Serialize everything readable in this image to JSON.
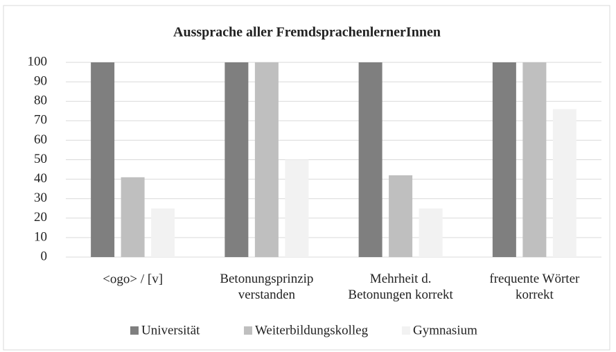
{
  "chart_data": {
    "type": "bar",
    "title": "Aussprache aller FremdsprachenlernerInnen",
    "categories": [
      "<ogo> / [v]",
      "Betonungsprinzip\nverstanden",
      "Mehrheit d.\nBetonungen korrekt",
      "frequente Wörter\nkorrekt"
    ],
    "series": [
      {
        "name": "Universität",
        "color": "#7f7f7f",
        "values": [
          100,
          100,
          100,
          100
        ]
      },
      {
        "name": "Weiterbildungskolleg",
        "color": "#bfbfbf",
        "values": [
          41,
          100,
          42,
          100
        ]
      },
      {
        "name": "Gymnasium",
        "color": "#f2f2f2",
        "values": [
          25,
          50,
          25,
          76
        ]
      }
    ],
    "ylim": [
      0,
      100
    ],
    "yticks": [
      0,
      10,
      20,
      30,
      40,
      50,
      60,
      70,
      80,
      90,
      100
    ],
    "grid": true,
    "legend": "bottom"
  }
}
